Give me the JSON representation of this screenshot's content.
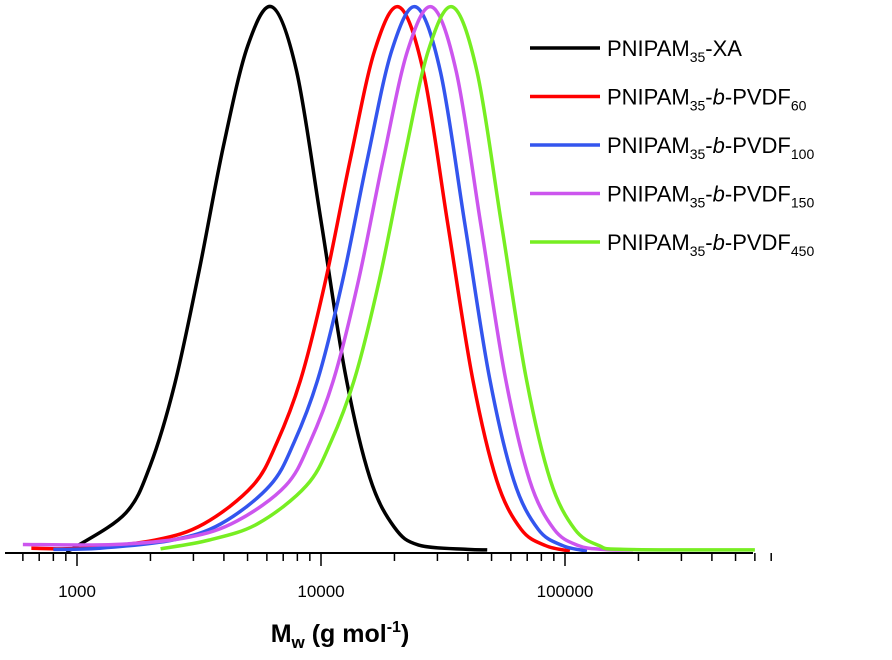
{
  "chart_data": {
    "type": "line",
    "title": "",
    "xlabel": {
      "main": "M",
      "sub": "w",
      "rest": " (g mol",
      "sup": "-1",
      "close": ")"
    },
    "ylabel": "",
    "xscale": "log",
    "xlim": [
      550,
      750000
    ],
    "ylim": [
      0,
      1
    ],
    "x_ticks": [
      1000,
      10000,
      100000
    ],
    "x_tick_labels": [
      "1000",
      "10000",
      "100000"
    ],
    "grid": false,
    "legend_placement": "top-right",
    "series": [
      {
        "name": {
          "base": "PNIPAM",
          "sub1": "35",
          "mid": "-XA",
          "italic": "",
          "tail": "",
          "sub2": ""
        },
        "color": "#000000",
        "points": [
          [
            900,
            0
          ],
          [
            1000,
            0.009
          ],
          [
            1585,
            0.07
          ],
          [
            1995,
            0.157
          ],
          [
            2512,
            0.306
          ],
          [
            3162,
            0.514
          ],
          [
            3981,
            0.744
          ],
          [
            5012,
            0.929
          ],
          [
            6310,
            1
          ],
          [
            7943,
            0.882
          ],
          [
            10000,
            0.607
          ],
          [
            12589,
            0.325
          ],
          [
            15849,
            0.135
          ],
          [
            19953,
            0.044
          ],
          [
            25119,
            0.011
          ],
          [
            39811,
            0.003
          ],
          [
            48000,
            0.002
          ]
        ]
      },
      {
        "name": {
          "base": "PNIPAM",
          "sub1": "35",
          "mid": "-",
          "italic": "b",
          "tail": "-PVDF",
          "sub2": "60"
        },
        "color": "#ff0000",
        "points": [
          [
            650,
            0.005
          ],
          [
            1047,
            0.005
          ],
          [
            2089,
            0.02
          ],
          [
            3311,
            0.05
          ],
          [
            5248,
            0.12
          ],
          [
            6607,
            0.2
          ],
          [
            8318,
            0.32
          ],
          [
            10471,
            0.5
          ],
          [
            13183,
            0.72
          ],
          [
            16596,
            0.92
          ],
          [
            20893,
            1
          ],
          [
            26303,
            0.88
          ],
          [
            33113,
            0.6
          ],
          [
            41687,
            0.32
          ],
          [
            52481,
            0.13
          ],
          [
            66069,
            0.04
          ],
          [
            83176,
            0.01
          ],
          [
            104713,
            0
          ]
        ]
      },
      {
        "name": {
          "base": "PNIPAM",
          "sub1": "35",
          "mid": "-",
          "italic": "b",
          "tail": "-PVDF",
          "sub2": "100"
        },
        "color": "#3355ee",
        "points": [
          [
            800,
            0.003
          ],
          [
            1230,
            0.005
          ],
          [
            2455,
            0.02
          ],
          [
            3890,
            0.05
          ],
          [
            6166,
            0.12
          ],
          [
            7762,
            0.2
          ],
          [
            9772,
            0.32
          ],
          [
            12303,
            0.5
          ],
          [
            15488,
            0.72
          ],
          [
            19498,
            0.92
          ],
          [
            24547,
            1
          ],
          [
            30903,
            0.88
          ],
          [
            38905,
            0.6
          ],
          [
            48978,
            0.32
          ],
          [
            61660,
            0.13
          ],
          [
            77625,
            0.04
          ],
          [
            97724,
            0.01
          ],
          [
            123027,
            0
          ]
        ]
      },
      {
        "name": {
          "base": "PNIPAM",
          "sub1": "35",
          "mid": "-",
          "italic": "b",
          "tail": "-PVDF",
          "sub2": "150"
        },
        "color": "#cc55ee",
        "points": [
          [
            600,
            0.012
          ],
          [
            1429,
            0.012
          ],
          [
            2851,
            0.025
          ],
          [
            4519,
            0.055
          ],
          [
            7161,
            0.12
          ],
          [
            9016,
            0.2
          ],
          [
            11350,
            0.32
          ],
          [
            14289,
            0.5
          ],
          [
            17989,
            0.72
          ],
          [
            22646,
            0.92
          ],
          [
            28510,
            1
          ],
          [
            35892,
            0.88
          ],
          [
            45186,
            0.6
          ],
          [
            56885,
            0.32
          ],
          [
            71614,
            0.13
          ],
          [
            90157,
            0.04
          ],
          [
            113501,
            0.01
          ],
          [
            142889,
            0.003
          ],
          [
            190000,
            0.002
          ]
        ]
      },
      {
        "name": {
          "base": "PNIPAM",
          "sub1": "35",
          "mid": "-",
          "italic": "b",
          "tail": "-PVDF",
          "sub2": "450"
        },
        "color": "#77ee22",
        "points": [
          [
            2200,
            0.004
          ],
          [
            3467,
            0.02
          ],
          [
            5495,
            0.05
          ],
          [
            8710,
            0.12
          ],
          [
            10965,
            0.2
          ],
          [
            13804,
            0.32
          ],
          [
            17378,
            0.5
          ],
          [
            21878,
            0.72
          ],
          [
            27542,
            0.92
          ],
          [
            34674,
            1
          ],
          [
            43652,
            0.88
          ],
          [
            54954,
            0.6
          ],
          [
            69183,
            0.32
          ],
          [
            87096,
            0.13
          ],
          [
            109648,
            0.04
          ],
          [
            138038,
            0.01
          ],
          [
            173780,
            0.003
          ],
          [
            600000,
            0.002
          ]
        ]
      }
    ]
  }
}
